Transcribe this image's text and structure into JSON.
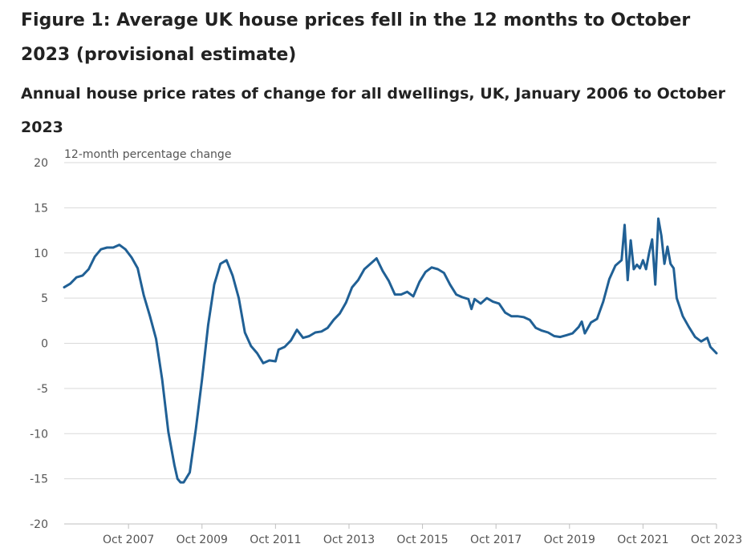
{
  "figure": {
    "title": "Figure 1: Average UK house prices fell in the 12 months to October 2023 (provisional estimate)",
    "subtitle": "Annual house price rates of change for all dwellings, UK, January 2006 to October 2023"
  },
  "colors": {
    "line": "#206095",
    "grid": "#d9d9d9",
    "axis": "#bfbfbf",
    "text": "#555555"
  },
  "chart_data": {
    "type": "line",
    "ylabel": "12-month percentage change",
    "ylim": [
      -20,
      20
    ],
    "yticks": [
      20,
      15,
      10,
      5,
      0,
      -5,
      -10,
      -15,
      -20
    ],
    "x_range": [
      "2006-01",
      "2023-10"
    ],
    "xticks": [
      {
        "date": "2007-10",
        "label": "Oct 2007"
      },
      {
        "date": "2009-10",
        "label": "Oct 2009"
      },
      {
        "date": "2011-10",
        "label": "Oct 2011"
      },
      {
        "date": "2013-10",
        "label": "Oct 2013"
      },
      {
        "date": "2015-10",
        "label": "Oct 2015"
      },
      {
        "date": "2017-10",
        "label": "Oct 2017"
      },
      {
        "date": "2019-10",
        "label": "Oct 2019"
      },
      {
        "date": "2021-10",
        "label": "Oct 2021"
      },
      {
        "date": "2023-10",
        "label": "Oct 2023"
      }
    ],
    "grid": "horizontal",
    "legend": "none",
    "series": [
      {
        "points": [
          [
            "2006-01",
            6.2
          ],
          [
            "2006-03",
            6.6
          ],
          [
            "2006-05",
            7.3
          ],
          [
            "2006-07",
            7.5
          ],
          [
            "2006-09",
            8.2
          ],
          [
            "2006-11",
            9.6
          ],
          [
            "2007-01",
            10.4
          ],
          [
            "2007-03",
            10.6
          ],
          [
            "2007-05",
            10.6
          ],
          [
            "2007-07",
            10.9
          ],
          [
            "2007-09",
            10.4
          ],
          [
            "2007-11",
            9.5
          ],
          [
            "2008-01",
            8.3
          ],
          [
            "2008-03",
            5.3
          ],
          [
            "2008-05",
            3.0
          ],
          [
            "2008-07",
            0.5
          ],
          [
            "2008-09",
            -4.0
          ],
          [
            "2008-11",
            -9.8
          ],
          [
            "2009-01",
            -13.5
          ],
          [
            "2009-02",
            -15.0
          ],
          [
            "2009-03",
            -15.4
          ],
          [
            "2009-04",
            -15.4
          ],
          [
            "2009-06",
            -14.3
          ],
          [
            "2009-08",
            -9.5
          ],
          [
            "2009-10",
            -4.0
          ],
          [
            "2009-12",
            2.0
          ],
          [
            "2010-02",
            6.5
          ],
          [
            "2010-04",
            8.8
          ],
          [
            "2010-06",
            9.2
          ],
          [
            "2010-08",
            7.5
          ],
          [
            "2010-10",
            5.0
          ],
          [
            "2010-12",
            1.2
          ],
          [
            "2011-02",
            -0.3
          ],
          [
            "2011-04",
            -1.1
          ],
          [
            "2011-06",
            -2.2
          ],
          [
            "2011-08",
            -1.9
          ],
          [
            "2011-10",
            -2.0
          ],
          [
            "2011-11",
            -0.7
          ],
          [
            "2012-01",
            -0.4
          ],
          [
            "2012-03",
            0.3
          ],
          [
            "2012-05",
            1.5
          ],
          [
            "2012-07",
            0.6
          ],
          [
            "2012-09",
            0.8
          ],
          [
            "2012-11",
            1.2
          ],
          [
            "2013-01",
            1.3
          ],
          [
            "2013-03",
            1.7
          ],
          [
            "2013-05",
            2.6
          ],
          [
            "2013-07",
            3.3
          ],
          [
            "2013-09",
            4.5
          ],
          [
            "2013-11",
            6.2
          ],
          [
            "2014-01",
            7.0
          ],
          [
            "2014-03",
            8.2
          ],
          [
            "2014-05",
            8.8
          ],
          [
            "2014-07",
            9.4
          ],
          [
            "2014-09",
            8.0
          ],
          [
            "2014-11",
            6.9
          ],
          [
            "2015-01",
            5.4
          ],
          [
            "2015-03",
            5.4
          ],
          [
            "2015-05",
            5.7
          ],
          [
            "2015-07",
            5.2
          ],
          [
            "2015-09",
            6.8
          ],
          [
            "2015-11",
            7.9
          ],
          [
            "2016-01",
            8.4
          ],
          [
            "2016-03",
            8.2
          ],
          [
            "2016-05",
            7.8
          ],
          [
            "2016-07",
            6.5
          ],
          [
            "2016-09",
            5.4
          ],
          [
            "2016-11",
            5.1
          ],
          [
            "2017-01",
            4.9
          ],
          [
            "2017-02",
            3.8
          ],
          [
            "2017-03",
            4.9
          ],
          [
            "2017-05",
            4.4
          ],
          [
            "2017-07",
            5.0
          ],
          [
            "2017-09",
            4.6
          ],
          [
            "2017-11",
            4.4
          ],
          [
            "2018-01",
            3.4
          ],
          [
            "2018-03",
            3.0
          ],
          [
            "2018-05",
            3.0
          ],
          [
            "2018-07",
            2.9
          ],
          [
            "2018-09",
            2.6
          ],
          [
            "2018-11",
            1.7
          ],
          [
            "2019-01",
            1.4
          ],
          [
            "2019-03",
            1.2
          ],
          [
            "2019-05",
            0.8
          ],
          [
            "2019-07",
            0.7
          ],
          [
            "2019-09",
            0.9
          ],
          [
            "2019-11",
            1.1
          ],
          [
            "2020-01",
            1.8
          ],
          [
            "2020-02",
            2.4
          ],
          [
            "2020-03",
            1.1
          ],
          [
            "2020-05",
            2.3
          ],
          [
            "2020-07",
            2.7
          ],
          [
            "2020-09",
            4.6
          ],
          [
            "2020-11",
            7.1
          ],
          [
            "2021-01",
            8.6
          ],
          [
            "2021-03",
            9.2
          ],
          [
            "2021-04",
            13.1
          ],
          [
            "2021-05",
            7.0
          ],
          [
            "2021-06",
            11.4
          ],
          [
            "2021-07",
            8.2
          ],
          [
            "2021-08",
            8.7
          ],
          [
            "2021-09",
            8.3
          ],
          [
            "2021-10",
            9.2
          ],
          [
            "2021-11",
            8.2
          ],
          [
            "2021-12",
            10.0
          ],
          [
            "2022-01",
            11.5
          ],
          [
            "2022-02",
            6.5
          ],
          [
            "2022-03",
            13.8
          ],
          [
            "2022-04",
            11.9
          ],
          [
            "2022-05",
            8.8
          ],
          [
            "2022-06",
            10.7
          ],
          [
            "2022-07",
            8.8
          ],
          [
            "2022-08",
            8.3
          ],
          [
            "2022-09",
            5.0
          ],
          [
            "2022-11",
            3.0
          ],
          [
            "2023-01",
            1.8
          ],
          [
            "2023-03",
            0.7
          ],
          [
            "2023-05",
            0.2
          ],
          [
            "2023-07",
            0.6
          ],
          [
            "2023-08",
            -0.4
          ],
          [
            "2023-10",
            -1.1
          ]
        ]
      }
    ]
  }
}
